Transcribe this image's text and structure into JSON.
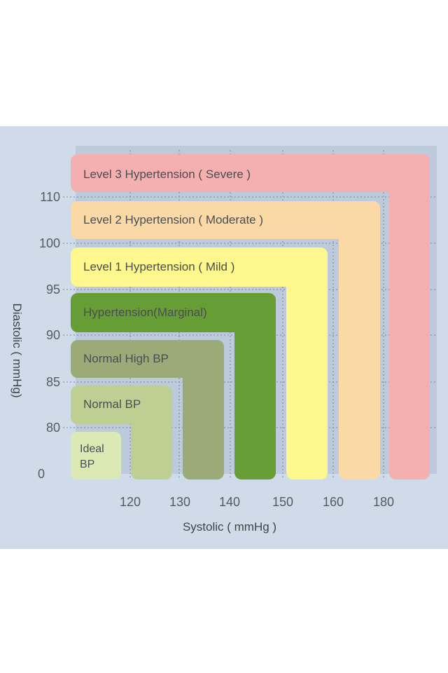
{
  "chart_data": {
    "type": "area",
    "xlabel": "Systolic ( mmHg )",
    "ylabel": "Diastolic ( mmHg)",
    "x_ticks": [
      "120",
      "130",
      "140",
      "150",
      "160",
      "180"
    ],
    "y_ticks": [
      "110",
      "100",
      "95",
      "90",
      "85",
      "80",
      "0"
    ],
    "categories": [
      {
        "name": "Level 3 Hypertension ( Severe )",
        "color": "#f4b0b0",
        "systolic_min": 180,
        "diastolic_min": 110
      },
      {
        "name": "Level 2 Hypertension ( Moderate )",
        "color": "#fbd9a6",
        "systolic_min": 160,
        "diastolic_min": 100
      },
      {
        "name": "Level 1 Hypertension ( Mild )",
        "color": "#fdf78e",
        "systolic_min": 140,
        "diastolic_min": 90
      },
      {
        "name": "Hypertension(Marginal)",
        "color": "#679d35",
        "systolic_min": 140,
        "diastolic_min": 90
      },
      {
        "name": "Normal High BP",
        "color": "#9aab78",
        "systolic_min": 130,
        "diastolic_min": 85
      },
      {
        "name": "Normal BP",
        "color": "#becf93",
        "systolic_min": 120,
        "diastolic_min": 80
      },
      {
        "name": "Ideal BP",
        "color": "#dbe9b4",
        "systolic_max": 120,
        "diastolic_max": 80
      }
    ],
    "grid": true,
    "grid_style": "dotted"
  },
  "labels": {
    "level3": "Level 3 Hypertension ( Severe )",
    "level2": "Level 2 Hypertension ( Moderate )",
    "level1": "Level 1 Hypertension ( Mild )",
    "marginal": "Hypertension(Marginal)",
    "normal_high": "Normal High BP",
    "normal": "Normal BP",
    "ideal_line1": "Ideal",
    "ideal_line2": "BP"
  }
}
